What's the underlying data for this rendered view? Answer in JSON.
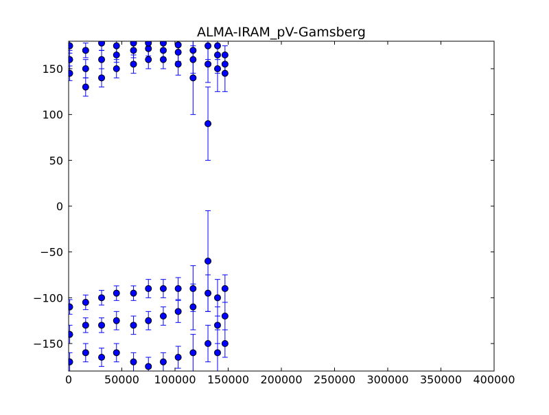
{
  "chart_data": {
    "type": "errorbar",
    "title": "ALMA-IRAM_pV-Gamsberg",
    "series": [
      {
        "color": "#0000ff",
        "edge": "#000000",
        "x": [
          1000,
          1000,
          1000,
          1000,
          1000,
          1000,
          16000,
          16000,
          16000,
          16000,
          16000,
          16000,
          31000,
          31000,
          31000,
          31000,
          31000,
          31000,
          45000,
          45000,
          45000,
          45000,
          45000,
          45000,
          61000,
          61000,
          61000,
          61000,
          61000,
          61000,
          75000,
          75000,
          75000,
          75000,
          75000,
          75000,
          89000,
          89000,
          89000,
          89000,
          89000,
          89000,
          103000,
          103000,
          103000,
          103000,
          103000,
          103000,
          117000,
          117000,
          117000,
          117000,
          117000,
          117000,
          131000,
          131000,
          131000,
          131000,
          131000,
          131000,
          140000,
          140000,
          140000,
          140000,
          140000,
          140000,
          147000,
          147000,
          147000,
          147000,
          147000,
          147000
        ],
        "values": [
          145,
          160,
          175,
          -110,
          -140,
          -170,
          130,
          150,
          170,
          -105,
          -130,
          -160,
          140,
          160,
          178,
          -100,
          -130,
          -165,
          150,
          165,
          175,
          -95,
          -125,
          -160,
          155,
          170,
          178,
          -95,
          -130,
          -170,
          160,
          172,
          178,
          -90,
          -125,
          -175,
          160,
          170,
          178,
          -90,
          -120,
          -170,
          155,
          168,
          176,
          -90,
          -115,
          -165,
          160,
          170,
          140,
          -90,
          -110,
          -160,
          155,
          175,
          90,
          -95,
          -60,
          -150,
          150,
          165,
          175,
          -100,
          -130,
          -160,
          145,
          155,
          165,
          -90,
          -120,
          -150
        ],
        "errors": [
          8,
          10,
          8,
          8,
          10,
          10,
          10,
          10,
          8,
          8,
          8,
          10,
          10,
          10,
          8,
          8,
          8,
          10,
          10,
          8,
          8,
          8,
          10,
          10,
          10,
          8,
          8,
          8,
          10,
          10,
          10,
          8,
          8,
          10,
          10,
          10,
          10,
          8,
          8,
          10,
          10,
          10,
          12,
          10,
          10,
          12,
          12,
          12,
          15,
          12,
          40,
          25,
          25,
          20,
          20,
          15,
          40,
          20,
          55,
          20,
          25,
          20,
          15,
          20,
          20,
          25,
          20,
          10,
          10,
          15,
          15,
          15
        ]
      }
    ],
    "xlim": [
      0,
      400000
    ],
    "ylim": [
      -180,
      180
    ],
    "xticks": [
      0,
      50000,
      100000,
      150000,
      200000,
      250000,
      300000,
      350000,
      400000
    ],
    "yticks": [
      {
        "value": -150,
        "label": "−150"
      },
      {
        "value": -100,
        "label": "−100"
      },
      {
        "value": -50,
        "label": "−50"
      },
      0,
      50,
      100,
      150
    ]
  }
}
